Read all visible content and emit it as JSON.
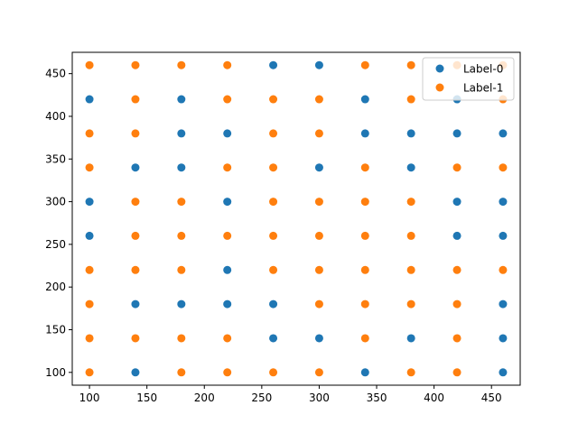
{
  "chart_data": {
    "type": "scatter",
    "title": "",
    "xlabel": "",
    "ylabel": "",
    "xlim": [
      85,
      475
    ],
    "ylim": [
      85,
      475
    ],
    "xticks": [
      100,
      150,
      200,
      250,
      300,
      350,
      400,
      450
    ],
    "yticks": [
      100,
      150,
      200,
      250,
      300,
      350,
      400,
      450
    ],
    "grid": false,
    "legend_position": "upper right",
    "x_grid": [
      100,
      140,
      180,
      220,
      260,
      300,
      340,
      380,
      420,
      460
    ],
    "y_grid": [
      460,
      420,
      380,
      340,
      300,
      260,
      220,
      180,
      140,
      100
    ],
    "label_matrix": [
      [
        1,
        1,
        1,
        1,
        0,
        0,
        1,
        1,
        1,
        1
      ],
      [
        0,
        1,
        0,
        1,
        1,
        1,
        0,
        1,
        0,
        1
      ],
      [
        1,
        1,
        0,
        0,
        1,
        1,
        0,
        0,
        0,
        0
      ],
      [
        1,
        0,
        0,
        1,
        1,
        0,
        1,
        0,
        1,
        1
      ],
      [
        0,
        1,
        1,
        0,
        1,
        1,
        1,
        1,
        0,
        0
      ],
      [
        0,
        1,
        1,
        1,
        1,
        1,
        1,
        1,
        0,
        0
      ],
      [
        1,
        1,
        1,
        0,
        1,
        1,
        1,
        1,
        1,
        1
      ],
      [
        1,
        0,
        0,
        0,
        0,
        1,
        1,
        1,
        1,
        0
      ],
      [
        1,
        1,
        1,
        1,
        0,
        0,
        1,
        0,
        1,
        0
      ],
      [
        1,
        0,
        1,
        1,
        1,
        1,
        0,
        1,
        1,
        0
      ]
    ],
    "series": [
      {
        "name": "Label-0",
        "color": "#1f77b4"
      },
      {
        "name": "Label-1",
        "color": "#ff7f0e"
      }
    ]
  }
}
